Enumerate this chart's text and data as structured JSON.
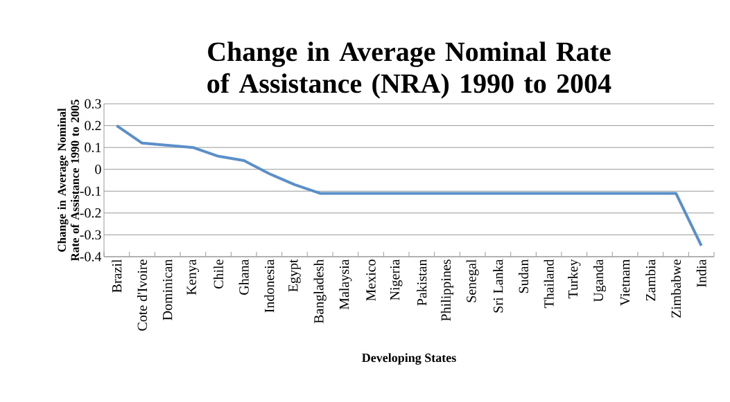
{
  "chart_data": {
    "type": "line",
    "title": "Change in Average Nominal Rate of Assistance (NRA) 1990 to 2004",
    "xlabel": "Developing States",
    "ylabel": "Change in Average Nominal Rate of Assistance 1990 to 2005",
    "categories": [
      "Brazil",
      "Cote d'Ivoire",
      "Dominican",
      "Kenya",
      "Chile",
      "Ghana",
      "Indonesia",
      "Egypt",
      "Bangladesh",
      "Malaysia",
      "Mexico",
      "Nigeria",
      "Pakistan",
      "Philippines",
      "Senegal",
      "Sri Lanka",
      "Sudan",
      "Thailand",
      "Turkey",
      "Uganda",
      "Vietnam",
      "Zambia",
      "Zimbabwe",
      "India"
    ],
    "values": [
      0.2,
      0.12,
      0.11,
      0.1,
      0.06,
      0.04,
      -0.02,
      -0.07,
      -0.11,
      -0.11,
      -0.11,
      -0.11,
      -0.11,
      -0.11,
      -0.11,
      -0.11,
      -0.11,
      -0.11,
      -0.11,
      -0.11,
      -0.11,
      -0.11,
      -0.11,
      -0.35
    ],
    "color": "#5b8fc9",
    "ylim": [
      -0.4,
      0.3
    ],
    "yticks": [
      -0.4,
      -0.3,
      -0.2,
      -0.1,
      0,
      0.1,
      0.2,
      0.3
    ],
    "grid": "y",
    "marker": "none",
    "line_style": "solid"
  }
}
